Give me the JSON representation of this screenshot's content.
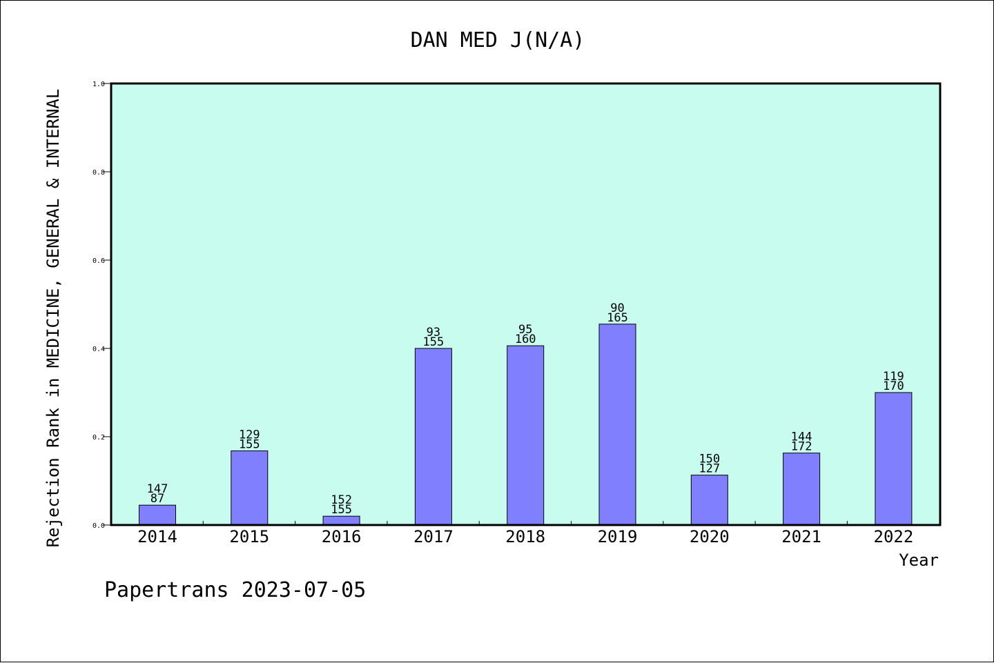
{
  "chart_data": {
    "type": "bar",
    "title": "DAN MED J(N/A)",
    "ylabel": "Rejection Rank in MEDICINE, GENERAL & INTERNAL",
    "xlabel": "Year",
    "footer": "Papertrans 2023-07-05",
    "ylim": [
      0,
      1.0
    ],
    "yticks": [
      "0.0",
      "0.2",
      "0.4",
      "0.6",
      "0.8",
      "1.0"
    ],
    "categories": [
      "2014",
      "2015",
      "2016",
      "2017",
      "2018",
      "2019",
      "2020",
      "2021",
      "2022"
    ],
    "values": [
      0.045,
      0.168,
      0.02,
      0.4,
      0.406,
      0.455,
      0.113,
      0.163,
      0.3
    ],
    "labels_top": [
      "147",
      "129",
      "152",
      "93",
      "95",
      "90",
      "150",
      "144",
      "119"
    ],
    "labels_bottom": [
      "87",
      "155",
      "155",
      "155",
      "160",
      "165",
      "127",
      "172",
      "170"
    ],
    "colors": {
      "plot_bg": "#c8fcee",
      "bar_fill": "#8080ff",
      "bar_stroke": "#000000"
    },
    "grid": false,
    "legend": "none"
  }
}
